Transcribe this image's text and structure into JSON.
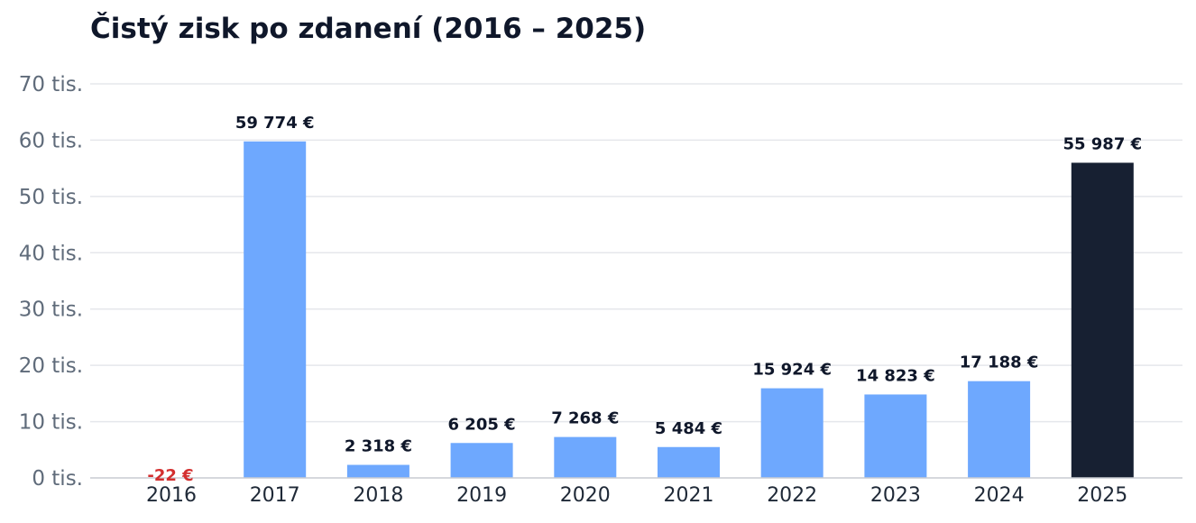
{
  "chart_data": {
    "type": "bar",
    "title": "Čistý zisk po zdanení (2016 – 2025)",
    "xlabel": "",
    "ylabel": "",
    "categories": [
      "2016",
      "2017",
      "2018",
      "2019",
      "2020",
      "2021",
      "2022",
      "2023",
      "2024",
      "2025"
    ],
    "values": [
      -22,
      59774,
      2318,
      6205,
      7268,
      5484,
      15924,
      14823,
      17188,
      55987
    ],
    "data_labels": [
      "-22 €",
      "59 774 €",
      "2 318 €",
      "6 205 €",
      "7 268 €",
      "5 484 €",
      "15 924 €",
      "14 823 €",
      "17 188 €",
      "55 987 €"
    ],
    "ylim": [
      0,
      70000
    ],
    "yticks": [
      0,
      10000,
      20000,
      30000,
      40000,
      50000,
      60000,
      70000
    ],
    "ytick_labels": [
      "0 tis.",
      "10 tis.",
      "20 tis.",
      "30 tis.",
      "40 tis.",
      "50 tis.",
      "60 tis.",
      "70 tis."
    ],
    "grid": true,
    "legend": "none",
    "colors": {
      "bar": "#6ea8fe",
      "highlight_bar": "#172032",
      "negative_label": "#d32f2f",
      "label": "#0f172a",
      "ytick": "#5f6b7a",
      "xtick": "#1f2937",
      "grid": "#e5e7eb",
      "axis": "#c8ccd2"
    },
    "highlight_category": "2025"
  }
}
